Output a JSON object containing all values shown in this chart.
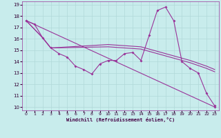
{
  "xlabel": "Windchill (Refroidissement éolien,°C)",
  "bg_color": "#c8ecec",
  "grid_color": "#b0d8d8",
  "line_color": "#993399",
  "xlim": [
    -0.5,
    23.5
  ],
  "ylim": [
    9.7,
    19.3
  ],
  "xticks": [
    0,
    1,
    2,
    3,
    4,
    5,
    6,
    7,
    8,
    9,
    10,
    11,
    12,
    13,
    14,
    15,
    16,
    17,
    18,
    19,
    20,
    21,
    22,
    23
  ],
  "yticks": [
    10,
    11,
    12,
    13,
    14,
    15,
    16,
    17,
    18,
    19
  ],
  "line1_x": [
    0,
    1,
    2,
    3,
    4,
    5,
    6,
    7,
    8,
    9,
    10,
    11,
    12,
    13,
    14,
    15,
    16,
    17,
    18,
    19,
    20,
    21,
    22,
    23
  ],
  "line1_y": [
    17.6,
    17.3,
    16.1,
    15.2,
    14.7,
    14.4,
    13.6,
    13.3,
    12.9,
    13.8,
    14.1,
    14.1,
    14.7,
    14.8,
    14.1,
    16.3,
    18.5,
    18.8,
    17.6,
    14.0,
    13.4,
    13.0,
    11.2,
    10.1
  ],
  "line2_x": [
    0,
    23
  ],
  "line2_y": [
    17.6,
    10.0
  ],
  "line3_x": [
    0,
    2,
    3,
    10,
    14,
    17,
    19,
    20,
    22,
    23
  ],
  "line3_y": [
    17.6,
    16.1,
    15.2,
    15.3,
    15.1,
    14.5,
    14.1,
    13.9,
    13.4,
    13.1
  ],
  "line4_x": [
    0,
    2,
    3,
    10,
    14,
    17,
    19,
    20,
    22,
    23
  ],
  "line4_y": [
    17.6,
    16.1,
    15.2,
    15.5,
    15.3,
    14.7,
    14.3,
    14.1,
    13.6,
    13.3
  ]
}
